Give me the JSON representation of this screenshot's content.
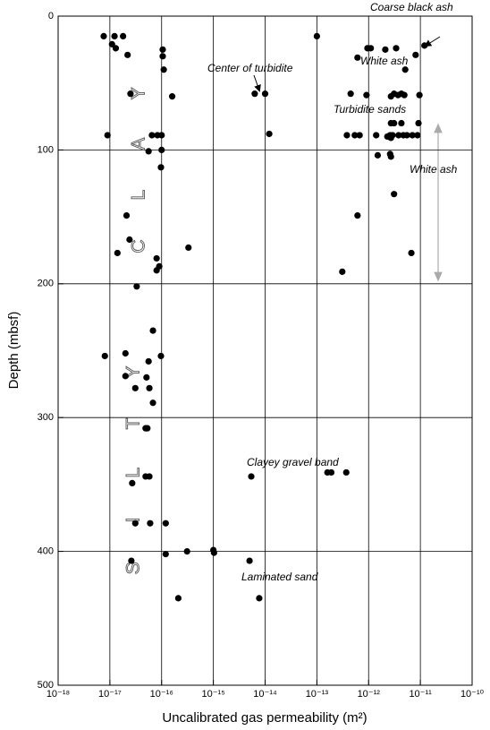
{
  "chart_data": {
    "type": "scatter",
    "x_label": "Uncalibrated gas permeability (m²)",
    "y_label": "Depth (mbsf)",
    "xscale": "log",
    "y_inverted": true,
    "grid": true,
    "xlim": [
      1e-18,
      1e-10
    ],
    "ylim": [
      0,
      500
    ],
    "xticks": [
      {
        "value": 1e-18,
        "label": "10⁻¹⁸"
      },
      {
        "value": 1e-17,
        "label": "10⁻¹⁷"
      },
      {
        "value": 1e-16,
        "label": "10⁻¹⁶"
      },
      {
        "value": 1e-15,
        "label": "10⁻¹⁵"
      },
      {
        "value": 1e-14,
        "label": "10⁻¹⁴"
      },
      {
        "value": 1e-13,
        "label": "10⁻¹³"
      },
      {
        "value": 1e-12,
        "label": "10⁻¹²"
      },
      {
        "value": 1e-11,
        "label": "10⁻¹¹"
      },
      {
        "value": 1e-10,
        "label": "10⁻¹⁰"
      }
    ],
    "yticks": [
      0,
      100,
      200,
      300,
      400,
      500
    ],
    "color": "#000000",
    "x": [
      7.6e-18,
      1.23e-17,
      1.8e-17,
      1.1e-17,
      1.3e-17,
      2.2e-17,
      1.05e-16,
      1.05e-16,
      1.1e-16,
      2.5e-17,
      1.6e-16,
      9e-18,
      6.5e-17,
      8.3e-17,
      1e-16,
      5.6e-17,
      1e-16,
      9.7e-17,
      2.1e-17,
      2.4e-17,
      1.4e-17,
      3.3e-16,
      8e-17,
      9e-17,
      8e-17,
      3.3e-17,
      6.8e-17,
      2e-17,
      8e-18,
      9.7e-17,
      5.6e-17,
      2e-17,
      5.1e-17,
      3.1e-17,
      5.8e-17,
      6.8e-17,
      4.9e-17,
      5.3e-17,
      2.7e-17,
      4.9e-17,
      5.8e-17,
      3.1e-17,
      6e-17,
      1.2e-16,
      2.6e-17,
      1.2e-16,
      3.1e-16,
      1e-15,
      1.03e-15,
      2.1e-16,
      5e-15,
      7.7e-15,
      5.4e-15,
      1.6e-13,
      1.9e-13,
      3.7e-13,
      1e-13,
      6.3e-15,
      1e-14,
      1.2e-14,
      9.5e-13,
      1.1e-12,
      2.1e-12,
      3.4e-12,
      1.2e-11,
      8.1e-12,
      6.1e-13,
      5.1e-12,
      4.5e-13,
      9.1e-13,
      2.7e-12,
      3.1e-12,
      3.7e-12,
      4.3e-12,
      4.9e-12,
      9.6e-12,
      2.7e-12,
      3.1e-12,
      4.3e-12,
      9.2e-12,
      3.8e-13,
      5.4e-13,
      6.7e-13,
      1.4e-12,
      2.6e-12,
      2.9e-12,
      3.8e-12,
      4.7e-12,
      5.5e-12,
      7e-12,
      8.8e-12,
      2.3e-12,
      2.7e-12,
      1.5e-12,
      2.6e-12,
      2.7e-12,
      3.1e-12,
      6.1e-13,
      6.7e-12,
      3.1e-13
    ],
    "values": [
      15,
      15,
      15,
      21,
      24,
      29,
      25,
      30,
      40,
      58,
      60,
      89,
      89,
      89,
      89,
      101,
      100,
      113,
      149,
      167,
      177,
      173,
      181,
      187,
      190,
      202,
      235,
      252,
      254,
      254,
      258,
      269,
      270,
      278,
      278,
      289,
      308,
      308,
      349,
      344,
      344,
      379,
      379,
      379,
      407,
      402,
      400,
      399,
      401,
      435,
      407,
      435,
      344,
      341,
      341,
      341,
      15,
      58,
      58,
      88,
      24,
      24,
      25,
      24,
      22,
      29,
      31,
      40,
      58,
      59,
      60,
      58,
      59,
      58,
      59,
      59,
      80,
      80,
      80,
      80,
      89,
      89,
      89,
      89,
      89,
      89,
      89,
      89,
      89,
      89,
      89,
      90,
      91,
      104,
      103,
      105,
      133,
      149,
      177,
      191
    ],
    "annotations": [
      "Coarse black ash",
      "White ash",
      "Center of turbidite",
      "Turbidite sands",
      "White ash",
      "Clayey gravel band",
      "Laminated sand"
    ],
    "lithology": [
      "CLAY",
      "SILTY"
    ]
  }
}
